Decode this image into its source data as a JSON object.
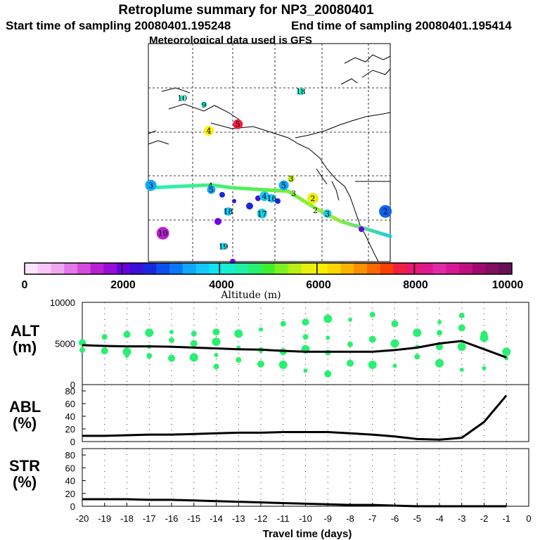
{
  "title": {
    "line1": "Retroplume summary for NP3_20080401",
    "start": "Start time of sampling 20080401.195248",
    "end": "End time of sampling 20080401.195414",
    "met": "Meteorological data used is GFS"
  },
  "colorbar": {
    "label": "Altitude (m)",
    "ticks": [
      "0",
      "2000",
      "4000",
      "6000",
      "8000",
      "10000"
    ],
    "colors": [
      "#fce4fc",
      "#f8c8f8",
      "#f0a8f0",
      "#e478e8",
      "#d44cdc",
      "#b820d0",
      "#9410d8",
      "#6c00e0",
      "#3c10d8",
      "#1828e0",
      "#0c50f0",
      "#0a78f8",
      "#10a8fc",
      "#18c8fc",
      "#10e4f0",
      "#18f0d0",
      "#20f0a8",
      "#28f070",
      "#40f030",
      "#80f020",
      "#b8f018",
      "#e8f010",
      "#fcf000",
      "#fcd800",
      "#fcb400",
      "#fc9000",
      "#fc6800",
      "#fc4000",
      "#f02040",
      "#e81870",
      "#e01890",
      "#e02ca8",
      "#d81898",
      "#c01080",
      "#a00870",
      "#801060",
      "#681058"
    ]
  },
  "map": {
    "markers": [
      {
        "label": "2",
        "color": "#1060f0",
        "r": 9,
        "lon": 0.98,
        "lat": 0.77
      },
      {
        "label": "3",
        "color": "#18d0e0",
        "r": 6,
        "lon": 0.74,
        "lat": 0.78
      },
      {
        "label": "2",
        "color": "#e8f010",
        "r": 8,
        "lon": 0.68,
        "lat": 0.71
      },
      {
        "label": "3",
        "color": "#c0f018",
        "r": 5,
        "lon": 0.59,
        "lat": 0.62
      },
      {
        "label": "5",
        "color": "#10a8fc",
        "r": 7,
        "lon": 0.56,
        "lat": 0.65
      },
      {
        "label": "4",
        "color": "#18c8fc",
        "r": 7,
        "lon": 0.48,
        "lat": 0.7
      },
      {
        "label": "16",
        "color": "#18c8fc",
        "r": 6,
        "lon": 0.51,
        "lat": 0.71
      },
      {
        "label": "17",
        "color": "#18d0e0",
        "r": 7,
        "lon": 0.47,
        "lat": 0.78
      },
      {
        "label": "18",
        "color": "#18c8fc",
        "r": 6,
        "lon": 0.33,
        "lat": 0.77
      },
      {
        "label": "5",
        "color": "#10a8fc",
        "r": 6,
        "lon": 0.26,
        "lat": 0.67
      },
      {
        "label": "3",
        "color": "#10a8fc",
        "r": 8,
        "lon": 0.01,
        "lat": 0.65
      },
      {
        "label": "10",
        "color": "#b820d0",
        "r": 9,
        "lon": 0.06,
        "lat": 0.87
      },
      {
        "label": "19",
        "color": "#18d0e0",
        "r": 5,
        "lon": 0.31,
        "lat": 0.93
      },
      {
        "label": "4",
        "color": "#fcf000",
        "r": 7,
        "lon": 0.25,
        "lat": 0.4
      },
      {
        "label": "5",
        "color": "#f02040",
        "r": 7,
        "lon": 0.37,
        "lat": 0.37
      },
      {
        "label": "18",
        "color": "#18f0d0",
        "r": 5,
        "lon": 0.63,
        "lat": 0.22
      },
      {
        "label": "10",
        "color": "#18f0d0",
        "r": 4,
        "lon": 0.14,
        "lat": 0.25
      },
      {
        "label": "9",
        "color": "#18f0d0",
        "r": 4,
        "lon": 0.23,
        "lat": 0.28
      }
    ],
    "track_labels": [
      "4",
      "3",
      "2"
    ]
  },
  "chart_data": [
    {
      "type": "line",
      "panel_label_line1": "ALT",
      "panel_label_line2": "(m)",
      "x": [
        -20,
        -19,
        -18,
        -17,
        -16,
        -15,
        -14,
        -13,
        -12,
        -11,
        -10,
        -9,
        -8,
        -7,
        -6,
        -5,
        -4,
        -3,
        -2,
        -1
      ],
      "values": [
        4800,
        4700,
        4650,
        4650,
        4600,
        4500,
        4400,
        4300,
        4250,
        4100,
        4000,
        4000,
        4000,
        4000,
        4200,
        4500,
        5000,
        5300,
        4300,
        3300
      ],
      "ylim": [
        0,
        10000
      ],
      "yticks": [
        "0",
        "5000",
        "10000"
      ],
      "scatter_y": [
        [
          5200,
          4200,
          5100
        ],
        [
          5800,
          4100
        ],
        [
          6100,
          4000,
          3500
        ],
        [
          6300,
          4600,
          3500
        ],
        [
          6400,
          5400,
          3200
        ],
        [
          6200,
          5000,
          3300
        ],
        [
          6400,
          5200,
          3600,
          2200
        ],
        [
          6200,
          4500,
          3000
        ],
        [
          6700,
          4200,
          2500
        ],
        [
          7400,
          4000,
          2400
        ],
        [
          7600,
          4300,
          1700,
          5800
        ],
        [
          8000,
          5700,
          3900,
          1300
        ],
        [
          7900,
          4900,
          2600
        ],
        [
          8500,
          5500,
          2400
        ],
        [
          7400,
          5000,
          2300
        ],
        [
          6300,
          4600,
          3400
        ],
        [
          7600,
          6300,
          4600,
          2600
        ],
        [
          8400,
          6900,
          4600,
          1800
        ],
        [
          6100,
          5700,
          2000
        ],
        [
          4000,
          3200
        ]
      ]
    },
    {
      "type": "line",
      "panel_label_line1": "ABL",
      "panel_label_line2": "(%)",
      "x": [
        -20,
        -19,
        -18,
        -17,
        -16,
        -15,
        -14,
        -13,
        -12,
        -11,
        -10,
        -9,
        -8,
        -7,
        -6,
        -5,
        -4,
        -3,
        -2,
        -1
      ],
      "values": [
        9,
        9,
        10,
        11,
        11,
        12,
        13,
        14,
        14,
        15,
        15,
        15,
        13,
        11,
        8,
        4,
        3,
        6,
        31,
        73
      ],
      "ylim": [
        0,
        90
      ],
      "yticks": [
        "0",
        "20",
        "40",
        "60",
        "80"
      ]
    },
    {
      "type": "line",
      "panel_label_line1": "STR",
      "panel_label_line2": "(%)",
      "x": [
        -20,
        -19,
        -18,
        -17,
        -16,
        -15,
        -14,
        -13,
        -12,
        -11,
        -10,
        -9,
        -8,
        -7,
        -6,
        -5,
        -4,
        -3,
        -2,
        -1
      ],
      "values": [
        11,
        11,
        11,
        10,
        10,
        9,
        8,
        7,
        6,
        5,
        4,
        3,
        2,
        2,
        1,
        0,
        0,
        0,
        0,
        0
      ],
      "ylim": [
        0,
        90
      ],
      "yticks": [
        "0",
        "20",
        "40",
        "60",
        "80"
      ],
      "xlabel": "Travel time (days)",
      "xticks": [
        "-20",
        "-19",
        "-18",
        "-17",
        "-16",
        "-15",
        "-14",
        "-13",
        "-12",
        "-11",
        "-10",
        "-9",
        "-8",
        "-7",
        "-6",
        "-5",
        "-4",
        "-3",
        "-2",
        "-1",
        "0"
      ]
    }
  ]
}
